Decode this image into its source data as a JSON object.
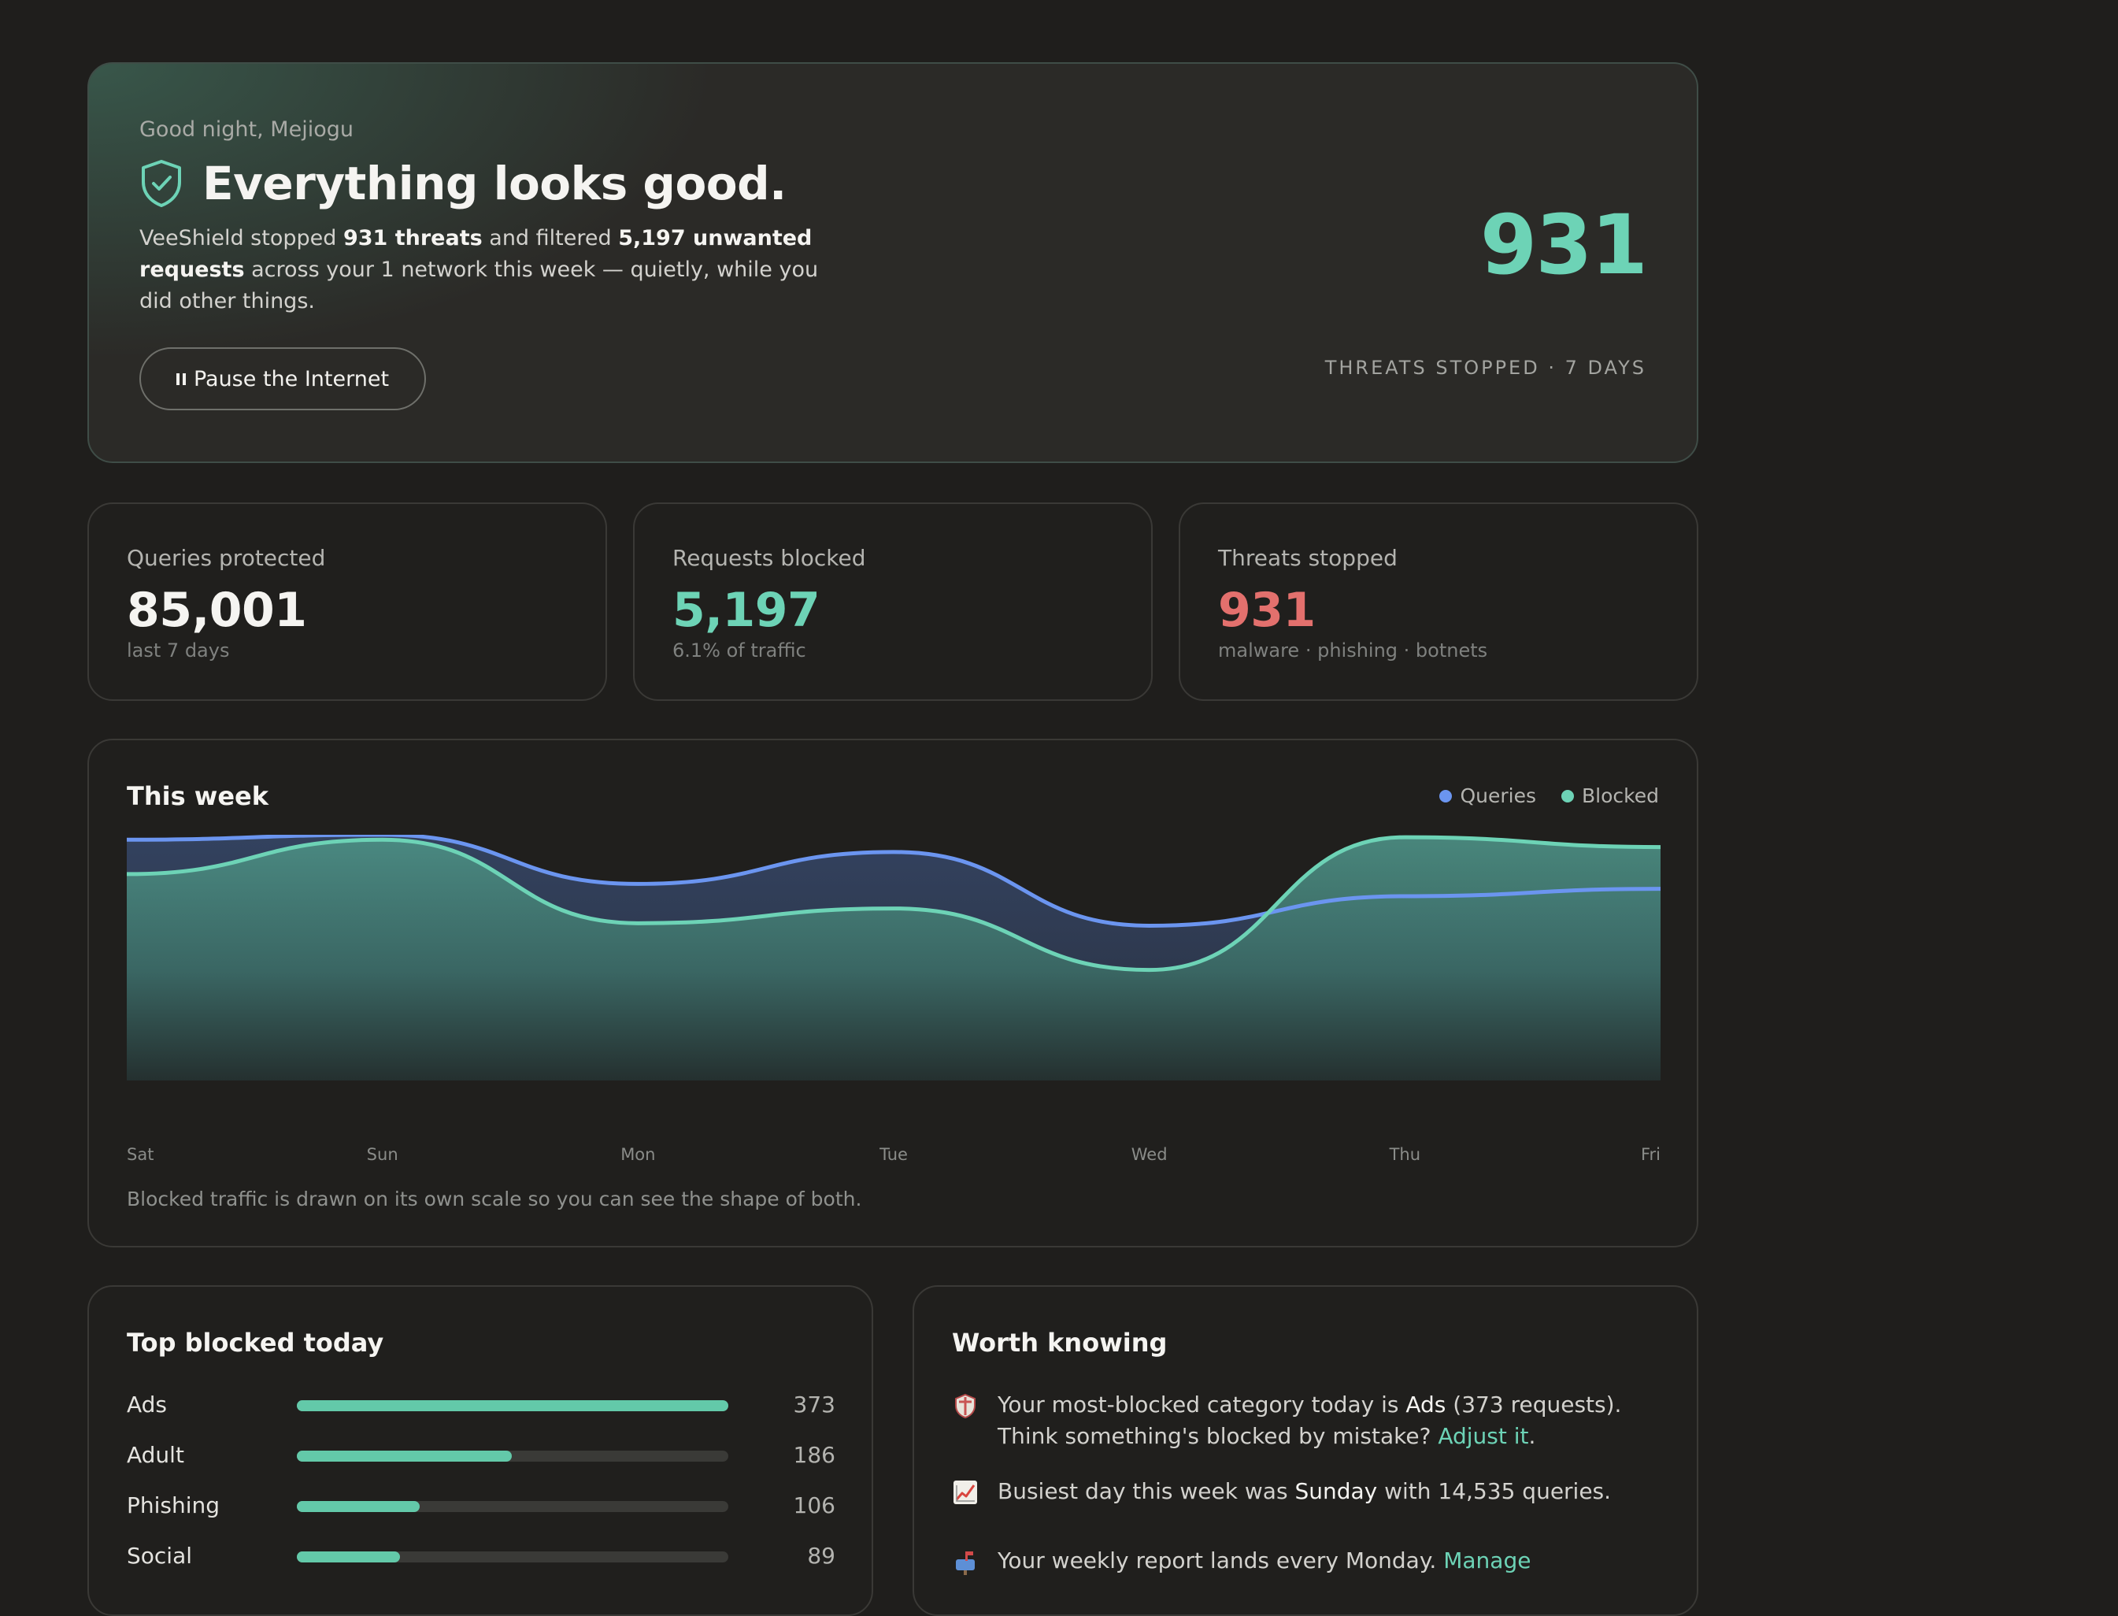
{
  "hero": {
    "greeting": "Good night, Mejiogu",
    "title": "Everything looks good.",
    "desc_1": "VeeShield stopped ",
    "desc_threats": "931 threats",
    "desc_2": " and filtered ",
    "desc_requests": "5,197 unwanted requests",
    "desc_3": " across your 1 network this week — quietly, while you did other things.",
    "pause_label": "Pause the Internet",
    "big_number": "931",
    "big_number_label": "THREATS STOPPED · 7 DAYS"
  },
  "stats": [
    {
      "label": "Queries protected",
      "value": "85,001",
      "sub": "last 7 days"
    },
    {
      "label": "Requests blocked",
      "value": "5,197",
      "sub": "6.1% of traffic"
    },
    {
      "label": "Threats stopped",
      "value": "931",
      "sub": "malware · phishing · botnets"
    }
  ],
  "chart": {
    "title": "This week",
    "legend_queries": "Queries",
    "legend_blocked": "Blocked",
    "note": "Blocked traffic is drawn on its own scale so you can see the shape of both.",
    "colors": {
      "queries": "#6b95f0",
      "blocked": "#6dd3b6"
    }
  },
  "chart_data": {
    "type": "area",
    "title": "This week",
    "categories": [
      "Sat",
      "Sun",
      "Mon",
      "Tue",
      "Wed",
      "Thu",
      "Fri"
    ],
    "y_axis": "none (each series on its own scale)",
    "series": [
      {
        "name": "Queries",
        "values": [
          0.98,
          1.0,
          0.8,
          0.93,
          0.63,
          0.75,
          0.78
        ]
      },
      {
        "name": "Blocked",
        "values": [
          0.84,
          0.98,
          0.64,
          0.7,
          0.45,
          0.99,
          0.95
        ]
      }
    ],
    "legend": "top-right",
    "grid": false
  },
  "top_blocked": {
    "title": "Top blocked today",
    "max": 373,
    "items": [
      {
        "name": "Ads",
        "count": 373
      },
      {
        "name": "Adult",
        "count": 186
      },
      {
        "name": "Phishing",
        "count": 106
      },
      {
        "name": "Social",
        "count": 89
      }
    ]
  },
  "worth_knowing": {
    "title": "Worth knowing",
    "tip1_a": "Your most-blocked category today is ",
    "tip1_b": "Ads",
    "tip1_c": " (373 requests). Think something's blocked by mistake? ",
    "tip1_link": "Adjust it",
    "tip1_d": ".",
    "tip2_a": "Busiest day this week was ",
    "tip2_b": "Sunday",
    "tip2_c": " with 14,535 queries.",
    "tip3_a": "Your weekly report lands every Monday. ",
    "tip3_link": "Manage",
    "icons": [
      "shield-icon",
      "chart-icon",
      "mailbox-icon"
    ]
  }
}
